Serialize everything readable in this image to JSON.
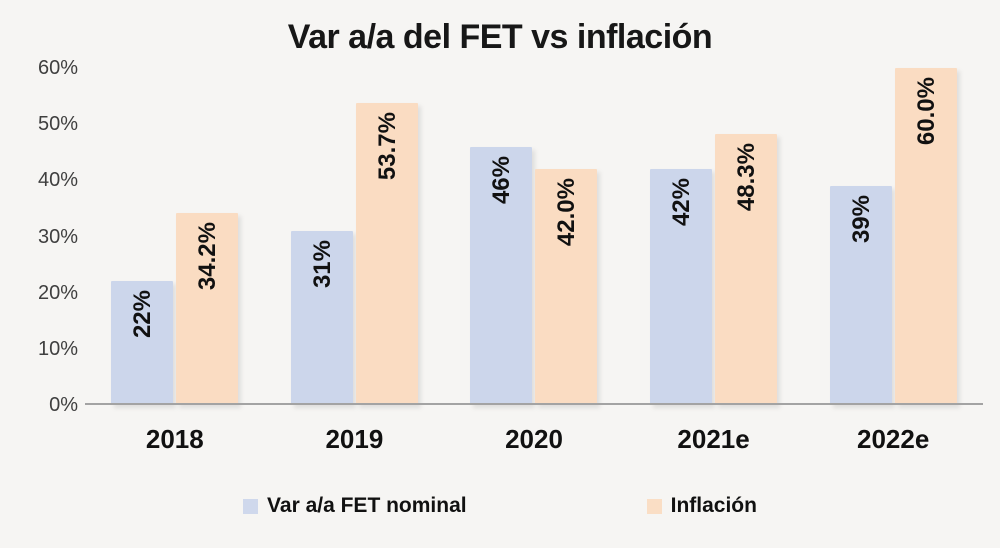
{
  "chart_data": {
    "type": "bar",
    "title": "Var a/a del FET vs inflación",
    "categories": [
      "2018",
      "2019",
      "2020",
      "2021e",
      "2022e"
    ],
    "series": [
      {
        "name": "Var a/a FET nominal",
        "color": "#ccd6eb",
        "values": [
          22,
          31,
          46,
          42,
          39
        ],
        "labels": [
          "22%",
          "31%",
          "46%",
          "42%",
          "39%"
        ]
      },
      {
        "name": "Inflación",
        "color": "#fadcc2",
        "values": [
          34.2,
          53.7,
          42.0,
          48.3,
          60.0
        ],
        "labels": [
          "34.2%",
          "53.7%",
          "42.0%",
          "48.3%",
          "60.0%"
        ]
      }
    ],
    "ylim": [
      0,
      60
    ],
    "y_ticks": [
      {
        "label": "0%",
        "value": 0
      },
      {
        "label": "10%",
        "value": 10
      },
      {
        "label": "20%",
        "value": 20
      },
      {
        "label": "30%",
        "value": 30
      },
      {
        "label": "40%",
        "value": 40
      },
      {
        "label": "50%",
        "value": 50
      },
      {
        "label": "60%",
        "value": 60
      }
    ],
    "grid": false,
    "legend_position": "bottom",
    "label_rotation": "vertical"
  },
  "colors": {
    "background": "#f6f5f3",
    "axis_line": "#a3a3a3",
    "tick_text": "#3f3f3f",
    "label_text": "#111111",
    "title_text": "#171717"
  }
}
